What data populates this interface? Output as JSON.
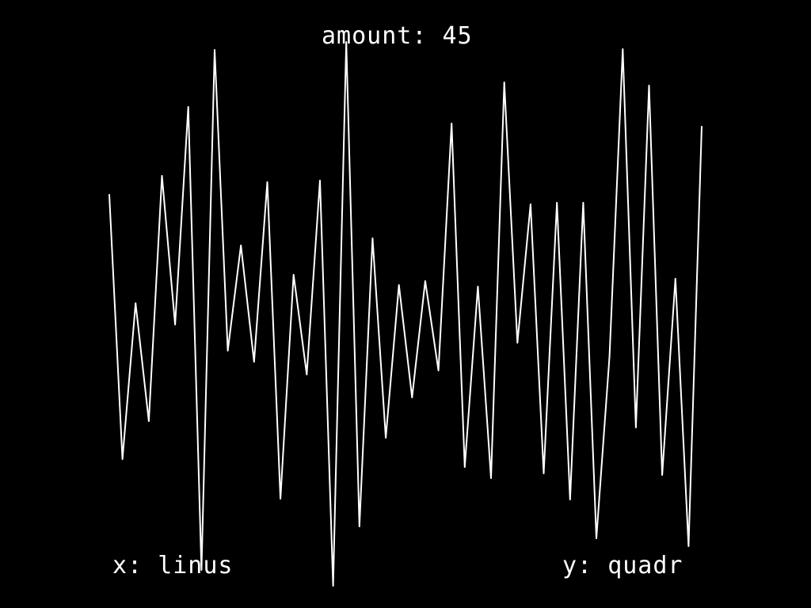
{
  "hud": {
    "amount_label": "amount:",
    "amount_value": "45",
    "x_label": "x:",
    "x_value": "linus",
    "y_label": "y:",
    "y_value": "quadr"
  },
  "colors": {
    "background": "#000000",
    "foreground": "#ffffff"
  },
  "chart_data": {
    "type": "line",
    "title": "",
    "xlabel": "",
    "ylabel": "",
    "xlim": [
      0,
      45
    ],
    "ylim": [
      0,
      768
    ],
    "grid": false,
    "series": [
      {
        "values": [
          246,
          580,
          383,
          532,
          222,
          410,
          135,
          720,
          63,
          443,
          310,
          457,
          230,
          630,
          347,
          473,
          228,
          740,
          53,
          665,
          301,
          553,
          360,
          502,
          355,
          468,
          156,
          590,
          362,
          604,
          104,
          433,
          258,
          598,
          256,
          631,
          256,
          680,
          450,
          62,
          540,
          108,
          600,
          352,
          690,
          160
        ]
      }
    ]
  }
}
